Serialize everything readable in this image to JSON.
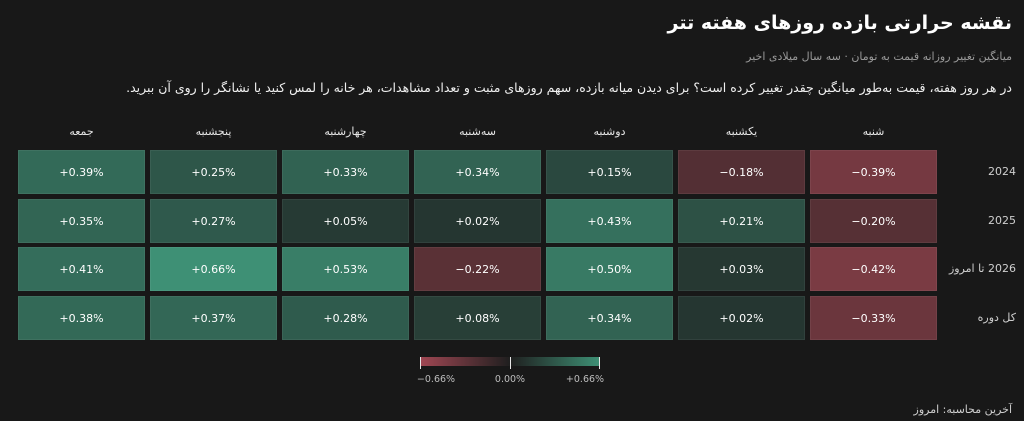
{
  "title": "نقشه حرارتی بازده روزهای هفته تتر",
  "subtitle": "میانگین تغییر روزانه قیمت به تومان · سه سال میلادی اخیر",
  "description": "در هر روز هفته، قیمت به‌طور میانگین چقدر تغییر کرده است؟ برای دیدن میانه بازده، سهم روزهای مثبت و تعداد مشاهدات، هر خانه را لمس کنید یا نشانگر را روی آن ببرید.",
  "footer": "آخرین محاسبه: امروز",
  "colors": {
    "negative": "#e05a6c",
    "neutral": "#1f1f1f",
    "positive": "#4dc8a0",
    "background": "#181818"
  },
  "chart_data": {
    "type": "heatmap",
    "columns": [
      "شنبه",
      "یکشنبه",
      "دوشنبه",
      "سه‌شنبه",
      "چهارشنبه",
      "پنجشنبه",
      "جمعه"
    ],
    "rows": [
      "2024",
      "2025",
      "2026 تا امروز",
      "کل دوره"
    ],
    "values": [
      [
        -0.39,
        -0.18,
        0.15,
        0.34,
        0.33,
        0.25,
        0.39
      ],
      [
        -0.2,
        0.21,
        0.43,
        0.02,
        0.05,
        0.27,
        0.35
      ],
      [
        -0.42,
        0.03,
        0.5,
        -0.22,
        0.53,
        0.66,
        0.41
      ],
      [
        -0.33,
        0.02,
        0.34,
        0.08,
        0.28,
        0.37,
        0.38
      ]
    ],
    "labels": [
      [
        "−0.39%",
        "−0.18%",
        "+0.15%",
        "+0.34%",
        "+0.33%",
        "+0.25%",
        "+0.39%"
      ],
      [
        "−0.20%",
        "+0.21%",
        "+0.43%",
        "+0.02%",
        "+0.05%",
        "+0.27%",
        "+0.35%"
      ],
      [
        "−0.42%",
        "+0.03%",
        "+0.50%",
        "−0.22%",
        "+0.53%",
        "+0.66%",
        "+0.41%"
      ],
      [
        "−0.33%",
        "+0.02%",
        "+0.34%",
        "+0.08%",
        "+0.28%",
        "+0.37%",
        "+0.38%"
      ]
    ],
    "color_scale": {
      "min": -0.66,
      "mid": 0,
      "max": 0.66,
      "tick_labels": [
        "−0.66%",
        "0.00%",
        "+0.66%"
      ]
    }
  }
}
